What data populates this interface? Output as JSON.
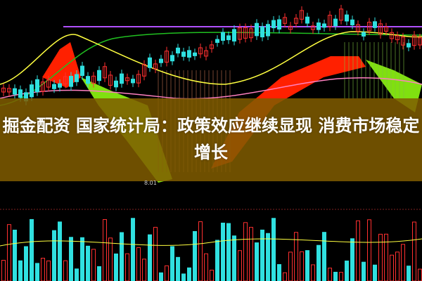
{
  "headline": "掘金配资 国家统计局：政策效应继续显现 消费市场稳定增长",
  "chart": {
    "low_price_label": "8.01",
    "colors": {
      "up": "#ff3030",
      "down": "#30e0e0",
      "ma_purple": "#b050ff",
      "ma_green": "#20c020",
      "ma_yellow": "#ffff40",
      "ribbon_red": "#ff2000",
      "ribbon_green": "#80e010",
      "overlay": "#805c00"
    }
  }
}
